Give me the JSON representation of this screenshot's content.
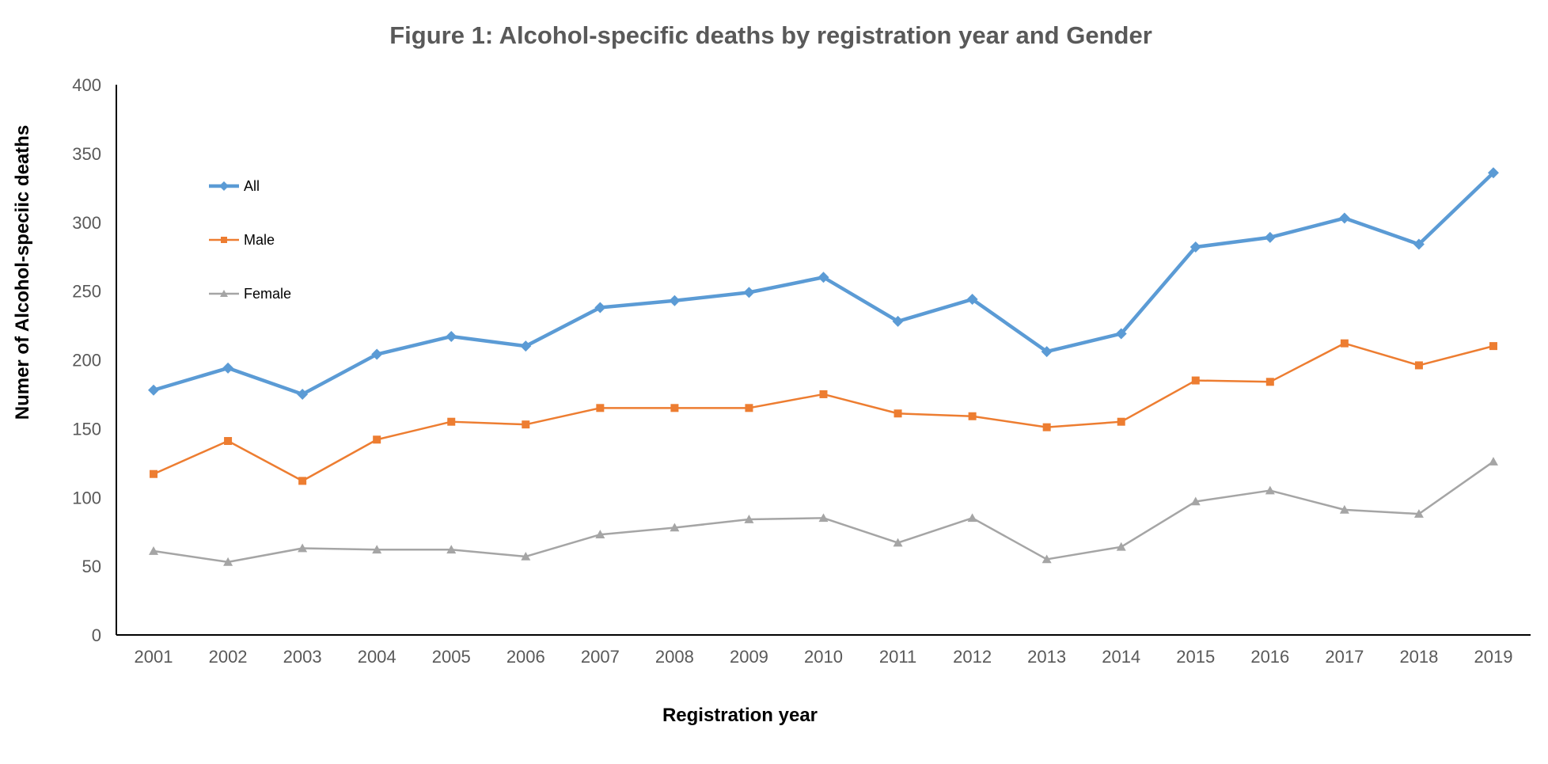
{
  "chart_data": {
    "type": "line",
    "title": "Figure 1: Alcohol-specific deaths by registration year and Gender",
    "xlabel": "Registration year",
    "ylabel": "Numer of Alcohol-speciic deaths",
    "categories": [
      "2001",
      "2002",
      "2003",
      "2004",
      "2005",
      "2006",
      "2007",
      "2008",
      "2009",
      "2010",
      "2011",
      "2012",
      "2013",
      "2014",
      "2015",
      "2016",
      "2017",
      "2018",
      "2019"
    ],
    "ylim": [
      0,
      400
    ],
    "yticks": [
      0,
      50,
      100,
      150,
      200,
      250,
      300,
      350,
      400
    ],
    "grid": false,
    "legend_position": "top-left",
    "series": [
      {
        "name": "All",
        "color": "#5B9BD5",
        "marker": "diamond",
        "values": [
          178,
          194,
          175,
          204,
          217,
          210,
          238,
          243,
          249,
          260,
          228,
          244,
          206,
          219,
          282,
          289,
          303,
          284,
          336
        ]
      },
      {
        "name": "Male",
        "color": "#ED7D31",
        "marker": "square",
        "values": [
          117,
          141,
          112,
          142,
          155,
          153,
          165,
          165,
          165,
          175,
          161,
          159,
          151,
          155,
          185,
          184,
          212,
          196,
          210
        ]
      },
      {
        "name": "Female",
        "color": "#A5A5A5",
        "marker": "triangle",
        "values": [
          61,
          53,
          63,
          62,
          62,
          57,
          73,
          78,
          84,
          85,
          67,
          85,
          55,
          64,
          97,
          105,
          91,
          88,
          126
        ]
      }
    ]
  }
}
